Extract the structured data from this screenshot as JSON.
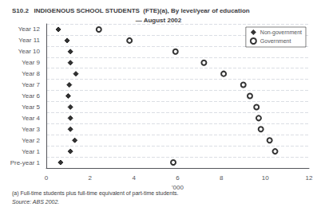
{
  "chart_data": {
    "type": "scatter",
    "title": "S10.2   INDIGENOUS SCHOOL STUDENTS  (FTE)(a), By level/year of education",
    "subtitle": "— August 2002",
    "categories": [
      "Year 12",
      "Year 11",
      "Year 10",
      "Year 9",
      "Year 8",
      "Year 7",
      "Year 6",
      "Year 5",
      "Year 4",
      "Year 3",
      "Year 2",
      "Year 1",
      "Pre-year 1"
    ],
    "series": [
      {
        "name": "Non-government",
        "color": "#000000",
        "marker": "diamond",
        "values": [
          0.55,
          0.95,
          1.1,
          1.1,
          1.35,
          1.05,
          1.0,
          1.1,
          1.1,
          1.1,
          1.3,
          1.1,
          0.65
        ]
      },
      {
        "name": "Government",
        "color": "#000000",
        "marker": "emptyCircle",
        "values": [
          2.4,
          3.8,
          5.9,
          7.2,
          8.1,
          9.0,
          9.3,
          9.6,
          9.7,
          9.8,
          10.2,
          10.45,
          5.8
        ]
      }
    ],
    "xlabel": "'000",
    "xlim": [
      0,
      12
    ],
    "xticks": [
      0,
      2,
      4,
      6,
      8,
      10,
      12
    ],
    "grid": true,
    "legend": "upper right",
    "annotations": [
      "(a) Full-time students plus full-time equivalent of part-time students.",
      "Source: ABS 2002."
    ]
  }
}
